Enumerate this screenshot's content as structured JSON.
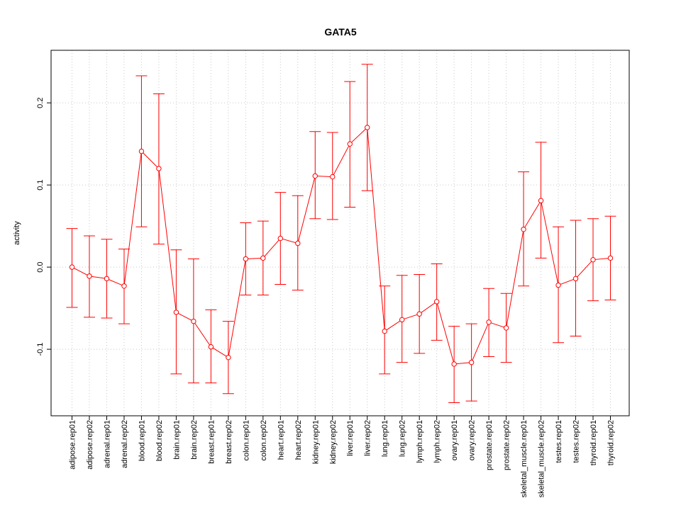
{
  "chart_data": {
    "type": "line",
    "title": "GATA5",
    "xlabel": "",
    "ylabel": "activity",
    "ylim": [
      -0.181,
      0.264
    ],
    "yticks": [
      -0.1,
      0.0,
      0.1,
      0.2
    ],
    "ytick_labels": [
      "-0.1",
      "0.0",
      "0.1",
      "0.2"
    ],
    "grid": true,
    "color": "#ff0000",
    "categories": [
      "adipose.rep01",
      "adipose.rep02",
      "adrenal.rep01",
      "adrenal.rep02",
      "blood.rep01",
      "blood.rep02",
      "brain.rep01",
      "brain.rep02",
      "breast.rep01",
      "breast.rep02",
      "colon.rep01",
      "colon.rep02",
      "heart.rep01",
      "heart.rep02",
      "kidney.rep01",
      "kidney.rep02",
      "liver.rep01",
      "liver.rep02",
      "lung.rep01",
      "lung.rep02",
      "lymph.rep01",
      "lymph.rep02",
      "ovary.rep01",
      "ovary.rep02",
      "prostate.rep01",
      "prostate.rep02",
      "skeletal_muscle.rep01",
      "skeletal_muscle.rep02",
      "testes.rep01",
      "testes.rep02",
      "thyroid.rep01",
      "thyroid.rep02"
    ],
    "values": [
      0.0,
      -0.011,
      -0.014,
      -0.023,
      0.141,
      0.12,
      -0.055,
      -0.066,
      -0.097,
      -0.11,
      0.01,
      0.011,
      0.035,
      0.029,
      0.111,
      0.11,
      0.15,
      0.17,
      -0.078,
      -0.064,
      -0.057,
      -0.042,
      -0.118,
      -0.116,
      -0.067,
      -0.074,
      0.046,
      0.081,
      -0.022,
      -0.014,
      0.009,
      0.011
    ],
    "upper": [
      0.047,
      0.038,
      0.034,
      0.022,
      0.233,
      0.211,
      0.021,
      0.01,
      -0.052,
      -0.066,
      0.054,
      0.056,
      0.091,
      0.087,
      0.165,
      0.164,
      0.226,
      0.247,
      -0.023,
      -0.01,
      -0.009,
      0.004,
      -0.072,
      -0.069,
      -0.026,
      -0.032,
      0.116,
      0.152,
      0.049,
      0.057,
      0.059,
      0.062
    ],
    "lower": [
      -0.049,
      -0.061,
      -0.062,
      -0.069,
      0.049,
      0.028,
      -0.13,
      -0.141,
      -0.141,
      -0.154,
      -0.034,
      -0.034,
      -0.021,
      -0.028,
      0.059,
      0.058,
      0.073,
      0.093,
      -0.13,
      -0.116,
      -0.105,
      -0.089,
      -0.165,
      -0.163,
      -0.109,
      -0.116,
      -0.023,
      0.011,
      -0.092,
      -0.084,
      -0.041,
      -0.04
    ]
  }
}
